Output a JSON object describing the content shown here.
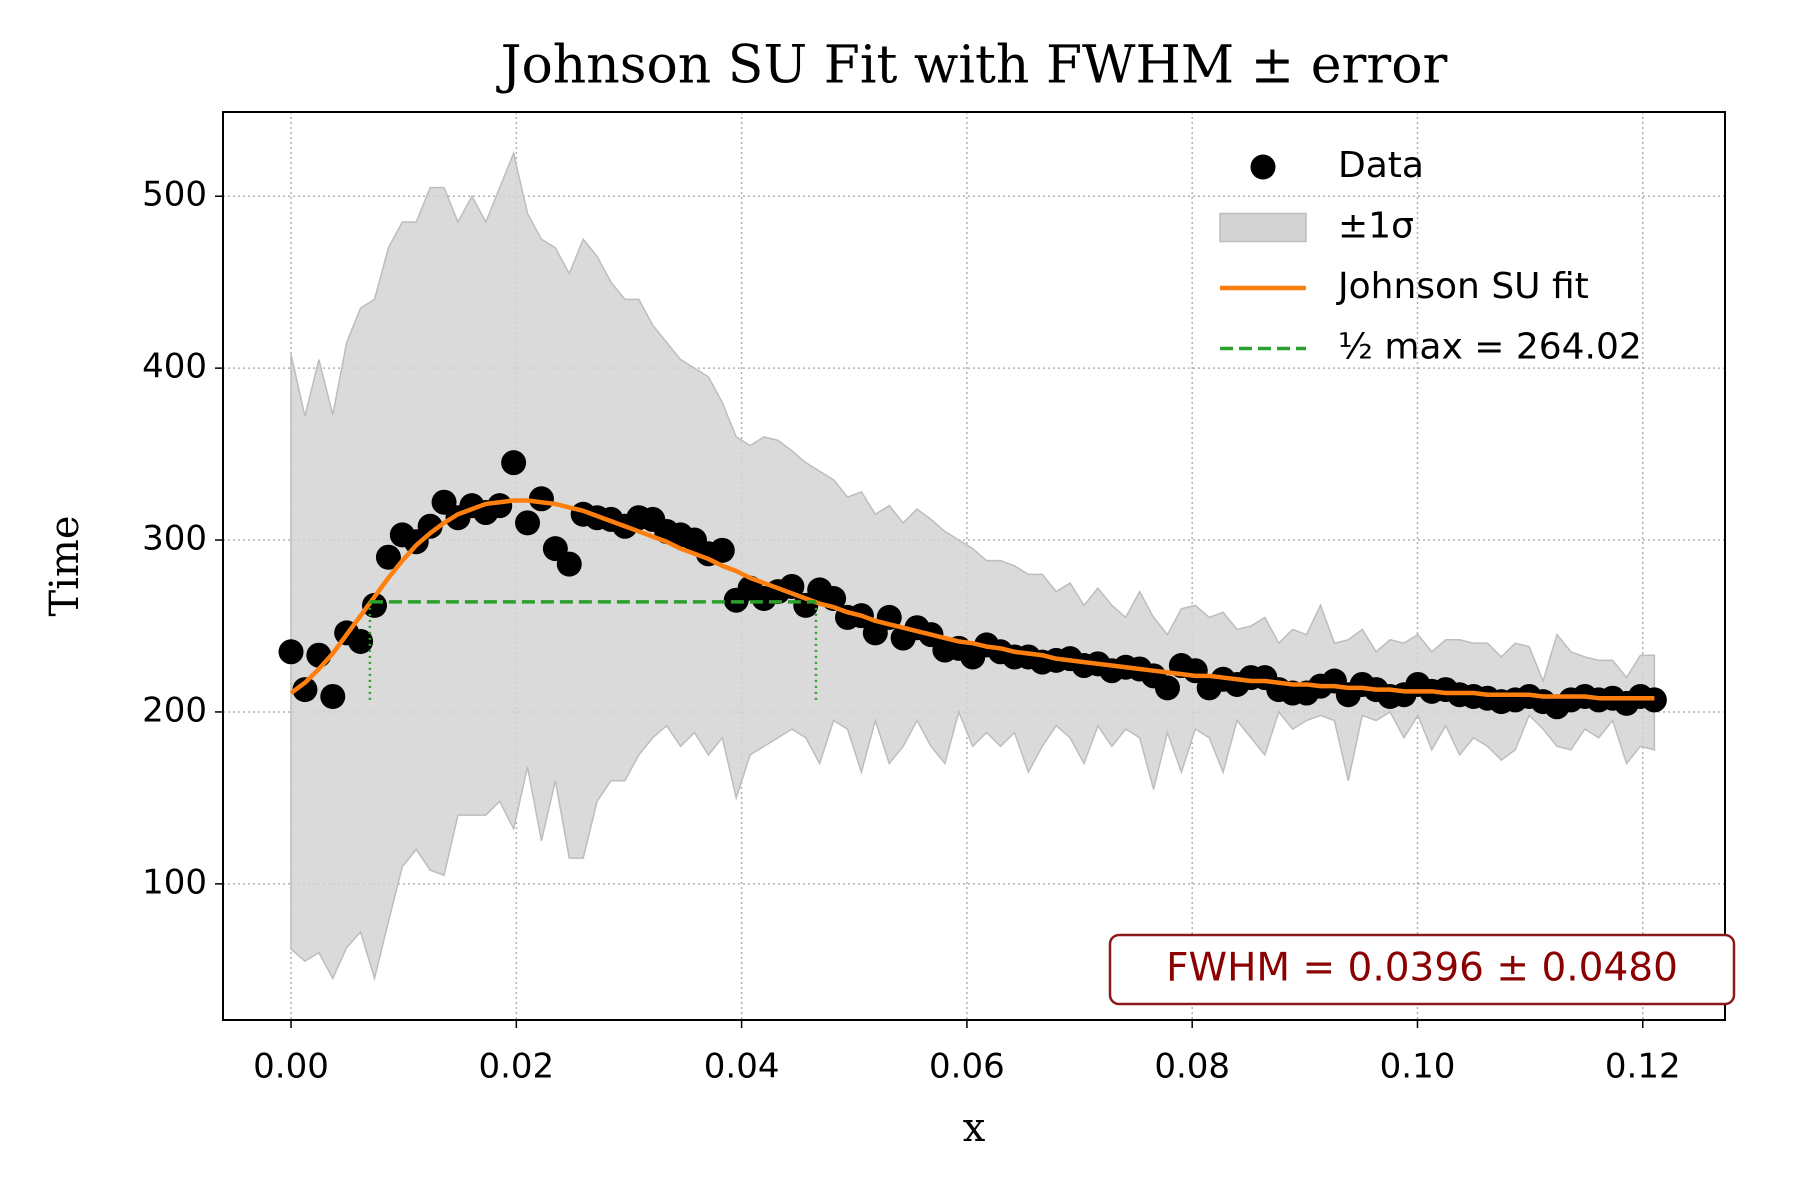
{
  "chart_data": {
    "type": "scatter",
    "title": "Johnson SU Fit with FWHM ± error",
    "x_label": "x",
    "y_label": "Time",
    "x": [
      0,
      0.001235,
      0.00247,
      0.003705,
      0.00494,
      0.006175,
      0.00741,
      0.008645,
      0.00988,
      0.011115,
      0.01235,
      0.013585,
      0.01482,
      0.016055,
      0.01729,
      0.018525,
      0.01976,
      0.020995,
      0.02223,
      0.023465,
      0.0247,
      0.025935,
      0.02717,
      0.028405,
      0.02964,
      0.030875,
      0.03211,
      0.033345,
      0.03458,
      0.035815,
      0.03705,
      0.038285,
      0.03952,
      0.040755,
      0.04199,
      0.043225,
      0.04446,
      0.045695,
      0.04693,
      0.048165,
      0.0494,
      0.050635,
      0.05187,
      0.053105,
      0.05434,
      0.055575,
      0.05681,
      0.058045,
      0.05928,
      0.060515,
      0.06175,
      0.062985,
      0.06422,
      0.065455,
      0.06669,
      0.067925,
      0.06916,
      0.070395,
      0.07163,
      0.072865,
      0.0741,
      0.075335,
      0.07657,
      0.077805,
      0.07904,
      0.080275,
      0.08151,
      0.082745,
      0.08398,
      0.085215,
      0.08645,
      0.087685,
      0.08892,
      0.090155,
      0.09139,
      0.092625,
      0.09386,
      0.095095,
      0.09633,
      0.097565,
      0.0988,
      0.100035,
      0.10127,
      0.102505,
      0.10374,
      0.104975,
      0.10621,
      0.107445,
      0.10868,
      0.109915,
      0.11115,
      0.112385,
      0.11362,
      0.114855,
      0.11609,
      0.117325,
      0.11856,
      0.119795,
      0.12103
    ],
    "series": [
      {
        "name": "Data",
        "type": "scatter",
        "color": "#000000",
        "values": [
          235,
          213,
          233,
          209,
          246,
          241,
          262,
          290,
          303,
          299,
          308,
          322,
          313,
          320,
          316,
          320,
          345,
          310,
          324,
          295,
          286,
          315,
          313,
          312,
          308,
          313,
          312,
          305,
          303,
          300,
          292,
          294,
          265,
          272,
          266,
          270,
          273,
          262,
          271,
          266,
          255,
          256,
          246,
          255,
          243,
          249,
          245,
          236,
          237,
          232,
          239,
          235,
          232,
          232,
          229,
          230,
          231,
          227,
          228,
          224,
          226,
          225,
          221,
          214,
          227,
          224,
          214,
          219,
          216,
          220,
          220,
          213,
          211,
          211,
          215,
          218,
          210,
          216,
          213,
          209,
          210,
          216,
          212,
          213,
          210,
          209,
          208,
          206,
          207,
          209,
          206,
          203,
          207,
          209,
          207,
          208,
          205,
          209,
          207
        ]
      },
      {
        "name": "±1σ",
        "type": "band",
        "color": "#d3d3d3",
        "upper": [
          408,
          372,
          405,
          373,
          415,
          435,
          440,
          470,
          485,
          485,
          505,
          505,
          485,
          500,
          485,
          505,
          525,
          490,
          475,
          470,
          455,
          475,
          465,
          450,
          440,
          440,
          425,
          415,
          405,
          400,
          395,
          380,
          360,
          355,
          360,
          358,
          352,
          345,
          340,
          335,
          325,
          328,
          315,
          320,
          310,
          318,
          312,
          305,
          300,
          295,
          288,
          288,
          285,
          280,
          280,
          270,
          275,
          262,
          272,
          262,
          255,
          270,
          255,
          245,
          260,
          262,
          255,
          258,
          248,
          250,
          255,
          240,
          248,
          245,
          262,
          240,
          242,
          248,
          235,
          242,
          240,
          245,
          235,
          242,
          242,
          240,
          240,
          232,
          240,
          238,
          218,
          245,
          235,
          232,
          230,
          230,
          220,
          233,
          233
        ],
        "lower": [
          62,
          55,
          60,
          45,
          63,
          72,
          45,
          78,
          110,
          120,
          108,
          105,
          140,
          140,
          140,
          148,
          132,
          168,
          125,
          160,
          115,
          115,
          148,
          160,
          160,
          175,
          185,
          192,
          180,
          188,
          175,
          185,
          150,
          175,
          180,
          185,
          190,
          185,
          170,
          195,
          190,
          165,
          195,
          170,
          180,
          195,
          180,
          170,
          200,
          180,
          188,
          180,
          188,
          165,
          180,
          192,
          185,
          170,
          192,
          180,
          190,
          185,
          155,
          188,
          165,
          190,
          185,
          165,
          195,
          185,
          175,
          200,
          190,
          195,
          198,
          195,
          160,
          198,
          195,
          200,
          185,
          198,
          178,
          192,
          175,
          185,
          180,
          172,
          178,
          198,
          190,
          180,
          178,
          190,
          185,
          195,
          170,
          180,
          178
        ]
      },
      {
        "name": "Johnson SU fit",
        "type": "line",
        "color": "#ff7f0e",
        "values": [
          211,
          217,
          225,
          234,
          245,
          256,
          267,
          278,
          288,
          297,
          304,
          310,
          315,
          318,
          321,
          322,
          323,
          323,
          322,
          321,
          319,
          317,
          314,
          311,
          308,
          305,
          302,
          299,
          295,
          292,
          289,
          285,
          282,
          278,
          275,
          272,
          269,
          266,
          263,
          261,
          258,
          256,
          253,
          251,
          249,
          247,
          245,
          243,
          241,
          240,
          238,
          237,
          235,
          234,
          233,
          231,
          230,
          229,
          228,
          227,
          226,
          225,
          224,
          223,
          222,
          221,
          221,
          220,
          219,
          218,
          218,
          217,
          216,
          216,
          215,
          215,
          214,
          214,
          213,
          213,
          212,
          212,
          212,
          211,
          211,
          211,
          210,
          210,
          210,
          210,
          209,
          209,
          209,
          209,
          208,
          208,
          208,
          208,
          208
        ]
      },
      {
        "name": "½ max = 264.02",
        "type": "hline",
        "color": "#2ca02c",
        "value": 264.02,
        "x_range": [
          0.007,
          0.0466
        ],
        "baseline": 205
      }
    ],
    "annotation": "FWHM = 0.0396 ± 0.0480",
    "xlim": [
      -0.00604,
      0.1273
    ],
    "ylim": [
      20.8,
      549
    ],
    "xticks": [
      {
        "value": 0,
        "label": "0.00"
      },
      {
        "value": 0.02,
        "label": "0.02"
      },
      {
        "value": 0.04,
        "label": "0.04"
      },
      {
        "value": 0.06,
        "label": "0.06"
      },
      {
        "value": 0.08,
        "label": "0.08"
      },
      {
        "value": 0.1,
        "label": "0.10"
      },
      {
        "value": 0.12,
        "label": "0.12"
      }
    ],
    "yticks": [
      100,
      200,
      300,
      400,
      500
    ],
    "grid": true,
    "legend": "upper right"
  }
}
